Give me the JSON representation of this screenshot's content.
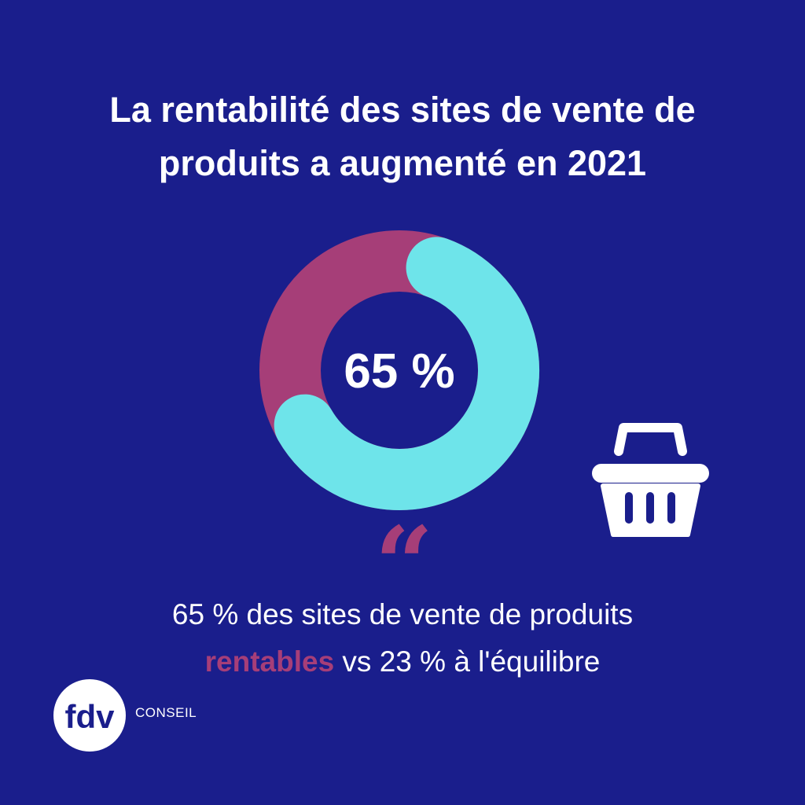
{
  "header": {
    "title_line1": "La rentabilité des sites de vente de",
    "title_line2": "produits a augmenté en 2021"
  },
  "chart_data": {
    "type": "pie",
    "variant": "donut",
    "center_label": "65 %",
    "values": [
      65,
      35
    ],
    "colors": [
      "#6ee4ea",
      "#a63e78"
    ]
  },
  "icons": {
    "basket": "shopping-basket-icon",
    "quote": "quote-icon"
  },
  "quote_mark": "“",
  "caption": {
    "before": "65 % des sites de vente de produits ",
    "highlight": "rentables",
    "after": " vs 23 % à l'équilibre"
  },
  "brand": {
    "logo_text": "fdv",
    "word": "CONSEIL"
  },
  "colors": {
    "background": "#1a1e8c",
    "accent_cyan": "#6ee4ea",
    "accent_magenta": "#a63e78",
    "text": "#ffffff"
  }
}
